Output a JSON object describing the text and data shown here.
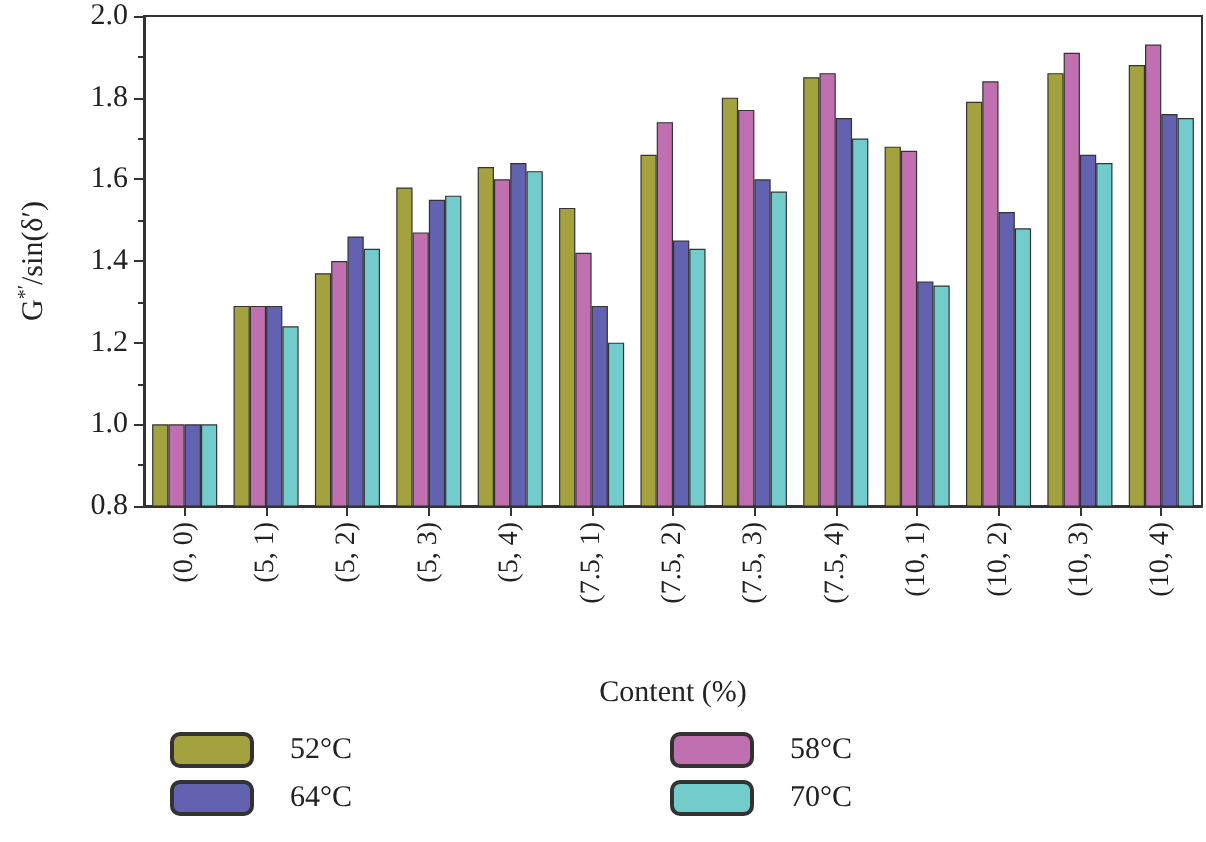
{
  "chart_data": {
    "type": "bar",
    "xlabel": "Content (%)",
    "ylabel": "G$^{*′}$/sin(δ′)",
    "categories": [
      "(0, 0)",
      "(5, 1)",
      "(5, 2)",
      "(5, 3)",
      "(5, 4)",
      "(7.5, 1)",
      "(7.5, 2)",
      "(7.5, 3)",
      "(7.5, 4)",
      "(10, 1)",
      "(10, 2)",
      "(10, 3)",
      "(10, 4)"
    ],
    "series": [
      {
        "name": "52°C",
        "color": "#a3a23e",
        "values": [
          1.0,
          1.29,
          1.37,
          1.58,
          1.63,
          1.53,
          1.66,
          1.8,
          1.85,
          1.68,
          1.79,
          1.86,
          1.88
        ]
      },
      {
        "name": "58°C",
        "color": "#c070b0",
        "values": [
          1.0,
          1.29,
          1.4,
          1.47,
          1.6,
          1.42,
          1.74,
          1.77,
          1.86,
          1.67,
          1.84,
          1.91,
          1.93
        ]
      },
      {
        "name": "64°C",
        "color": "#6262b0",
        "values": [
          1.0,
          1.29,
          1.46,
          1.55,
          1.64,
          1.29,
          1.45,
          1.6,
          1.75,
          1.35,
          1.52,
          1.66,
          1.76
        ]
      },
      {
        "name": "70°C",
        "color": "#72cccc",
        "values": [
          1.0,
          1.24,
          1.43,
          1.56,
          1.62,
          1.2,
          1.43,
          1.57,
          1.7,
          1.34,
          1.48,
          1.64,
          1.75
        ]
      }
    ],
    "ylim": [
      0.8,
      2.0
    ],
    "yticks": [
      0.8,
      {
        "value": 1,
        "label": "1.0"
      },
      1.2,
      1.4,
      1.6,
      1.8,
      {
        "value": 2,
        "label": "2.0"
      }
    ],
    "grid": false,
    "legend": "bottom"
  }
}
